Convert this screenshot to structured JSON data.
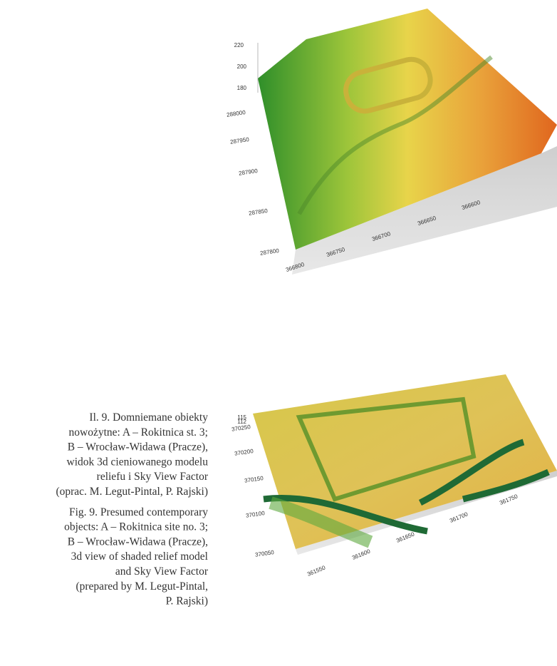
{
  "figures": [
    {
      "z_labels": [
        "220",
        "200",
        "180"
      ],
      "y_labels": [
        "288000",
        "287950",
        "287900",
        "287850",
        "287800"
      ],
      "x_labels": [
        "366800",
        "366750",
        "366700",
        "366650",
        "366600"
      ]
    },
    {
      "z_labels": [
        "115",
        "112"
      ],
      "y_labels": [
        "370250",
        "370200",
        "370150",
        "370100",
        "370050"
      ],
      "x_labels": [
        "361550",
        "361600",
        "361650",
        "361700",
        "361750"
      ]
    }
  ],
  "caption": {
    "pl": [
      "Il. 9. Domniemane obiekty",
      "nowożytne: A – Rokitnica st. 3;",
      "B – Wrocław-Widawa (Pracze),",
      "widok 3d cieniowanego modelu",
      "reliefu i Sky View Factor",
      "(oprac. M. Legut-Pintal, P. Rajski)"
    ],
    "en": [
      "Fig. 9. Presumed contemporary",
      "objects: A – Rokitnica site no. 3;",
      "B – Wrocław-Widawa (Pracze),",
      "3d view of shaded relief model",
      "and Sky View Factor",
      "(prepared by M. Legut-Pintal,",
      "P. Rajski)"
    ]
  }
}
